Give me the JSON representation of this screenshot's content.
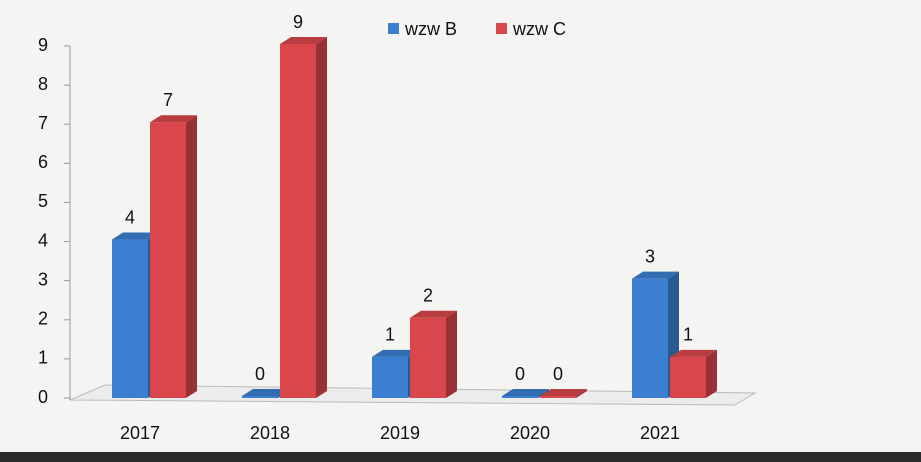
{
  "chart_data": {
    "type": "bar3d",
    "categories": [
      "2017",
      "2018",
      "2019",
      "2020",
      "2021"
    ],
    "series": [
      {
        "name": "wzw B",
        "color": "#3b7fd0",
        "values": [
          4,
          0,
          1,
          0,
          3
        ]
      },
      {
        "name": "wzw C",
        "color": "#d9464b",
        "values": [
          7,
          9,
          2,
          0,
          1
        ]
      }
    ],
    "ylim": [
      0,
      9
    ],
    "yticks": [
      0,
      1,
      2,
      3,
      4,
      5,
      6,
      7,
      8,
      9
    ],
    "legend": "top"
  }
}
